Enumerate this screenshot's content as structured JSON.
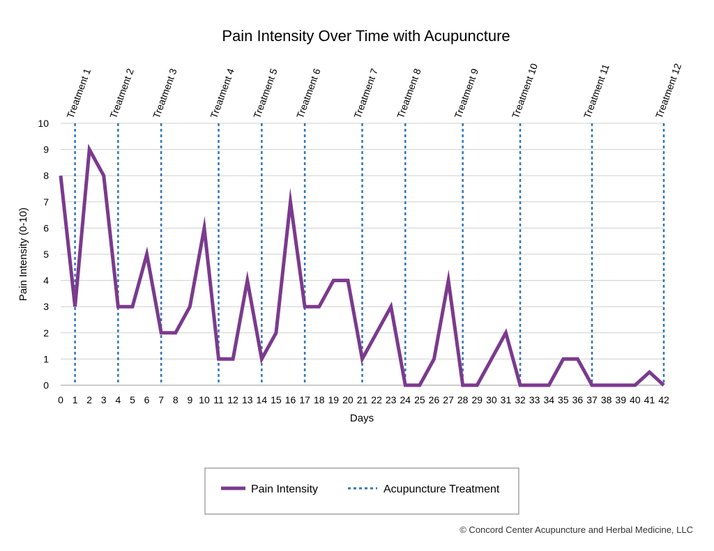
{
  "chart_data": {
    "type": "line",
    "title": "Pain Intensity Over Time with Acupuncture",
    "xlabel": "Days",
    "ylabel": "Pain Intensity (0-10)",
    "xlim": [
      0,
      42
    ],
    "ylim": [
      0,
      10
    ],
    "grid": true,
    "legend_position": "bottom-center",
    "series": [
      {
        "name": "Pain Intensity",
        "color": "#7b3a8e",
        "x": [
          0,
          1,
          2,
          3,
          4,
          5,
          6,
          7,
          8,
          9,
          10,
          11,
          12,
          13,
          14,
          15,
          16,
          17,
          18,
          19,
          20,
          21,
          22,
          23,
          24,
          25,
          26,
          27,
          28,
          29,
          30,
          31,
          32,
          33,
          34,
          35,
          36,
          37,
          38,
          39,
          40,
          41,
          42
        ],
        "y": [
          8,
          3,
          9,
          8,
          3,
          3,
          5,
          2,
          2,
          3,
          6,
          1,
          1,
          4,
          1,
          2,
          7,
          3,
          3,
          4,
          4,
          1,
          2,
          3,
          0,
          0,
          1,
          4,
          0,
          0,
          1,
          2,
          0,
          0,
          0,
          1,
          1,
          0,
          0,
          0,
          0,
          0.5,
          0
        ]
      }
    ],
    "treatments": {
      "name": "Acupuncture Treatment",
      "color": "#2f75b5",
      "days": [
        1,
        4,
        7,
        11,
        14,
        17,
        21,
        24,
        28,
        32,
        37,
        42
      ],
      "labels": [
        "Treatment 1",
        "Treatment 2",
        "Treatment 3",
        "Treatment 4",
        "Treatment 5",
        "Treatment 6",
        "Treatment 7",
        "Treatment 8",
        "Treatment 9",
        "Treatment 10",
        "Treatment 11",
        "Treatment 12"
      ]
    },
    "x_ticks": [
      "0",
      "1",
      "2",
      "3",
      "4",
      "5",
      "6",
      "7",
      "8",
      "9",
      "10",
      "11",
      "12",
      "13",
      "14",
      "15",
      "16",
      "17",
      "18",
      "19",
      "20",
      "21",
      "22",
      "23",
      "24",
      "25",
      "26",
      "27",
      "28",
      "29",
      "30",
      "31",
      "32",
      "33",
      "34",
      "35",
      "36",
      "37",
      "38",
      "39",
      "40",
      "41",
      "42"
    ],
    "y_ticks": [
      "0",
      "1",
      "2",
      "3",
      "4",
      "5",
      "6",
      "7",
      "8",
      "9",
      "10"
    ]
  },
  "legend": {
    "pain_label": "Pain Intensity",
    "treatment_label": "Acupuncture Treatment"
  },
  "credit": "© Concord Center Acupuncture and Herbal Medicine, LLC"
}
